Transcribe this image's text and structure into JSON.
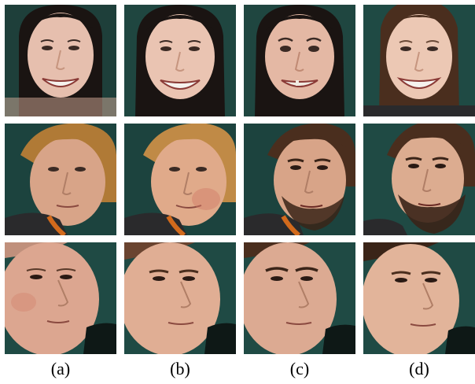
{
  "captions": [
    "(a)",
    "(b)",
    "(c)",
    "(d)"
  ],
  "colors": {
    "background_teal": "#1f4a44",
    "background_dark": "#0e1816",
    "skin_light": "#e8c2b0",
    "skin_warm": "#d89c84",
    "hair_dark": "#1a1412",
    "hair_blond": "#b07a36",
    "hair_brown": "#4a2e1e",
    "beard": "#3a2418",
    "shirt_dark": "#2a2a2c",
    "collar_orange": "#d26a1c"
  },
  "rows": [
    {
      "subject": "smiling-woman",
      "cells": [
        "woman-a",
        "woman-b",
        "woman-c",
        "woman-d"
      ]
    },
    {
      "subject": "blond-man-and-bearded-man",
      "cells": [
        "blond-man-a",
        "blond-man-b",
        "bearded-man-c",
        "bearded-man-d"
      ]
    },
    {
      "subject": "short-hair-man",
      "cells": [
        "short-hair-man-a",
        "short-hair-man-b",
        "short-hair-man-c",
        "short-hair-man-d"
      ]
    }
  ]
}
